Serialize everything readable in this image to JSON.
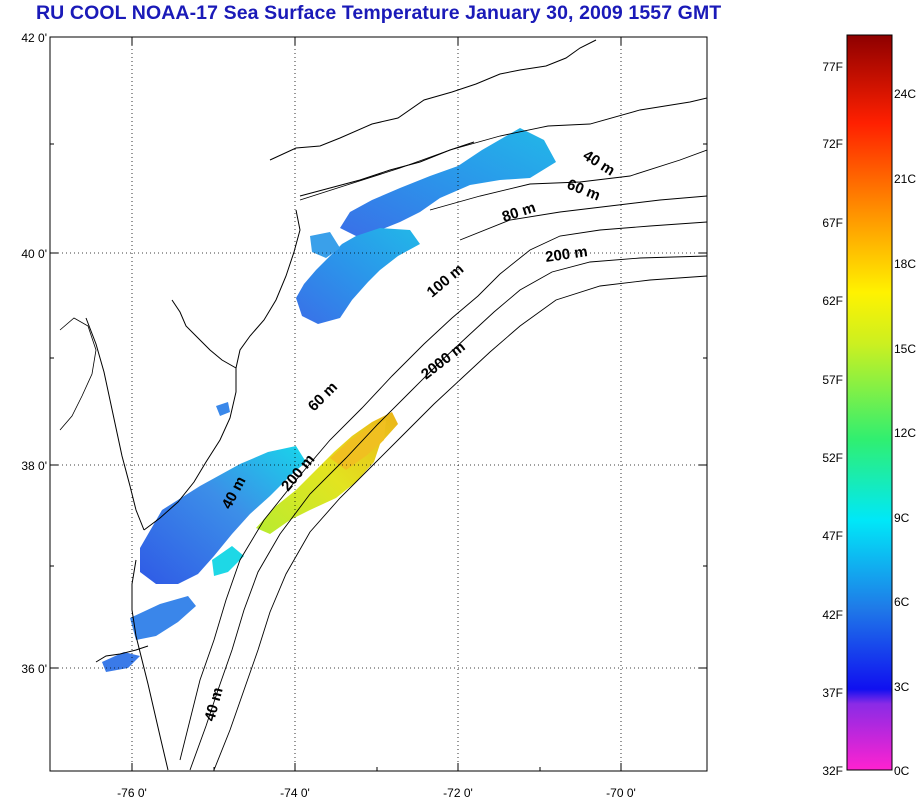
{
  "title": "RU COOL  NOAA-17 Sea Surface Temperature January 30, 2009 1557 GMT",
  "map": {
    "lat_ticks": [
      "42 0'",
      "40 0'",
      "38 0'",
      "36 0'"
    ],
    "lon_ticks": [
      "-76 0'",
      "-74 0'",
      "-72 0'",
      "-70 0'"
    ],
    "lat_range": [
      35,
      42.1
    ],
    "lon_range": [
      -77,
      -69
    ],
    "grid": "dotted",
    "isobath_labels": [
      {
        "id": "iso-40m-north",
        "text": "40 m"
      },
      {
        "id": "iso-60m-north",
        "text": "60 m"
      },
      {
        "id": "iso-80m",
        "text": "80 m"
      },
      {
        "id": "iso-200m-north",
        "text": "200 m"
      },
      {
        "id": "iso-100m",
        "text": "100 m"
      },
      {
        "id": "iso-2000m",
        "text": "2000 m"
      },
      {
        "id": "iso-60m-south",
        "text": "60 m"
      },
      {
        "id": "iso-200m-south",
        "text": "200 m"
      },
      {
        "id": "iso-40m-mid",
        "text": "40 m"
      },
      {
        "id": "iso-40m-south",
        "text": "40 m"
      }
    ],
    "colors": {
      "land_outline": "#000000",
      "grid": "#000000",
      "cold_water": "#3f7fe6",
      "mid_water": "#22c8e8",
      "warm_water": "#e8c820",
      "shelf_water": "#b8ec30"
    }
  },
  "legend": {
    "f_labels": [
      "77F",
      "72F",
      "67F",
      "62F",
      "57F",
      "52F",
      "47F",
      "42F",
      "37F",
      "32F"
    ],
    "c_labels": [
      "24C",
      "21C",
      "18C",
      "15C",
      "12C",
      "9C",
      "6C",
      "3C",
      "0C"
    ],
    "range_f": [
      32,
      80
    ],
    "stops": [
      "#ff22d0",
      "#8a2be6",
      "#0a10f0",
      "#1f7ae8",
      "#00e8f8",
      "#30ef70",
      "#ccf020",
      "#fff200",
      "#ff9000",
      "#ff2000",
      "#8e0000"
    ]
  }
}
